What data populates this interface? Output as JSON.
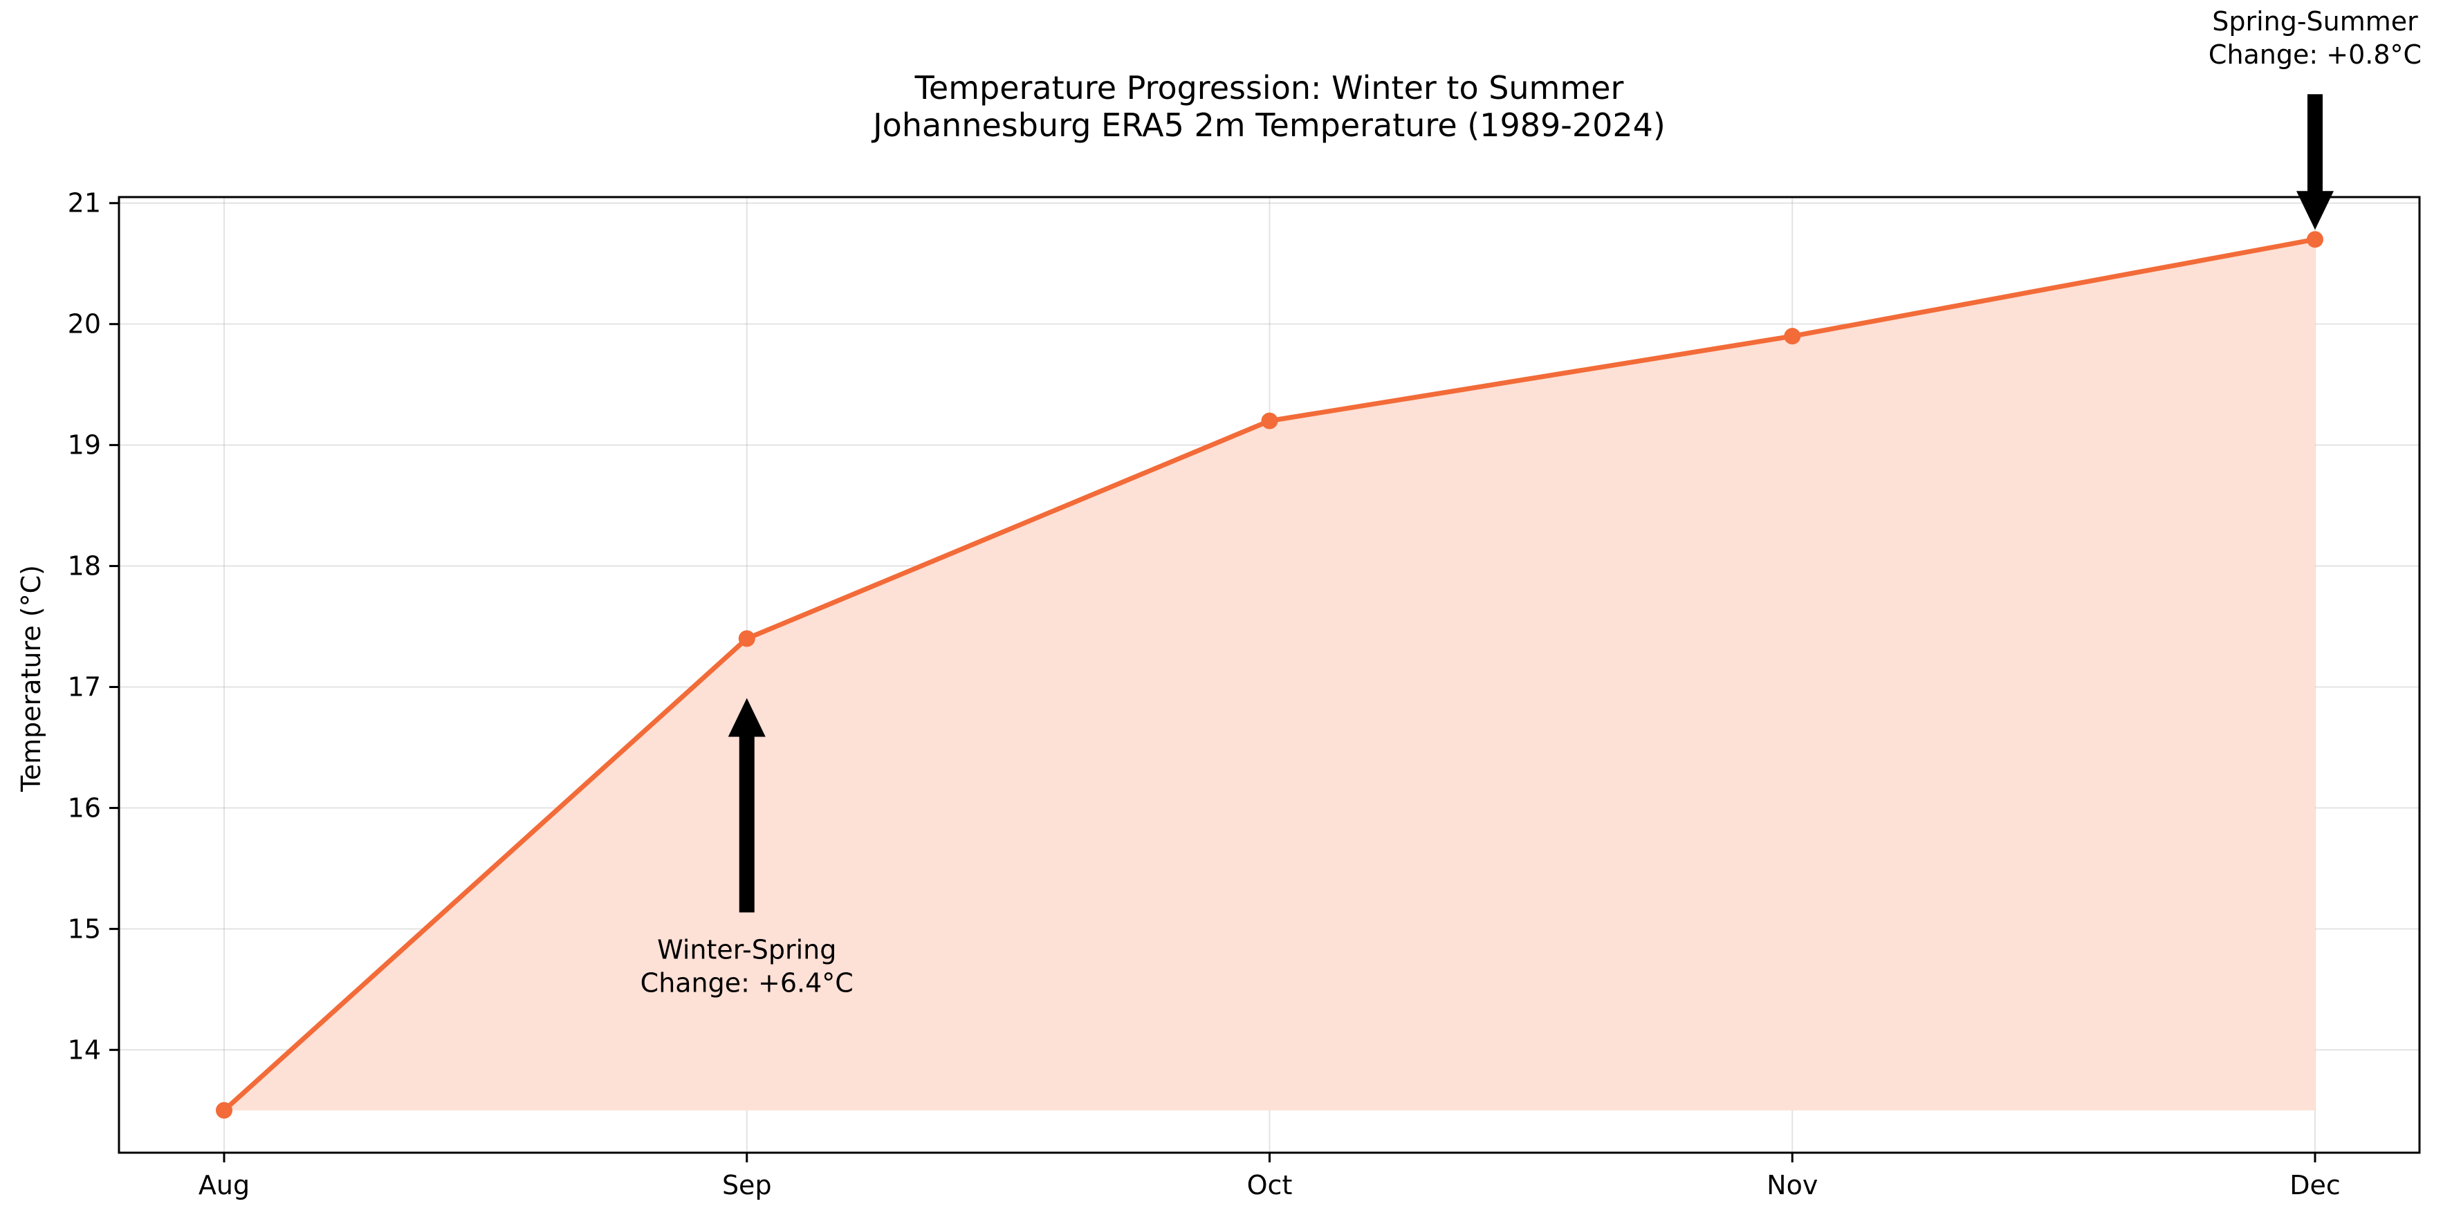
{
  "chart_data": {
    "type": "line",
    "title": "Temperature Progression: Winter to Summer",
    "subtitle": "Johannesburg ERA5 2m Temperature (1989-2024)",
    "xlabel": "",
    "ylabel": "Temperature (°C)",
    "categories": [
      "Aug",
      "Sep",
      "Oct",
      "Nov",
      "Dec"
    ],
    "series": [
      {
        "values": [
          13.5,
          17.4,
          19.2,
          19.9,
          20.7
        ],
        "color": "#f26b38",
        "fill_color": "#fde0d6",
        "marker": "circle",
        "area_fill": true
      }
    ],
    "ylim": [
      13.15,
      21.05
    ],
    "yticks": [
      14,
      15,
      16,
      17,
      18,
      19,
      20,
      21
    ],
    "grid": true,
    "annotations": [
      {
        "text_lines": [
          "Winter-Spring",
          "Change: +6.4°C"
        ],
        "target_category": "Sep",
        "target_value": 17.4,
        "direction": "up",
        "placement": "below"
      },
      {
        "text_lines": [
          "Spring-Summer",
          "Change: +0.8°C"
        ],
        "target_category": "Dec",
        "target_value": 20.7,
        "direction": "down",
        "placement": "above"
      }
    ]
  }
}
